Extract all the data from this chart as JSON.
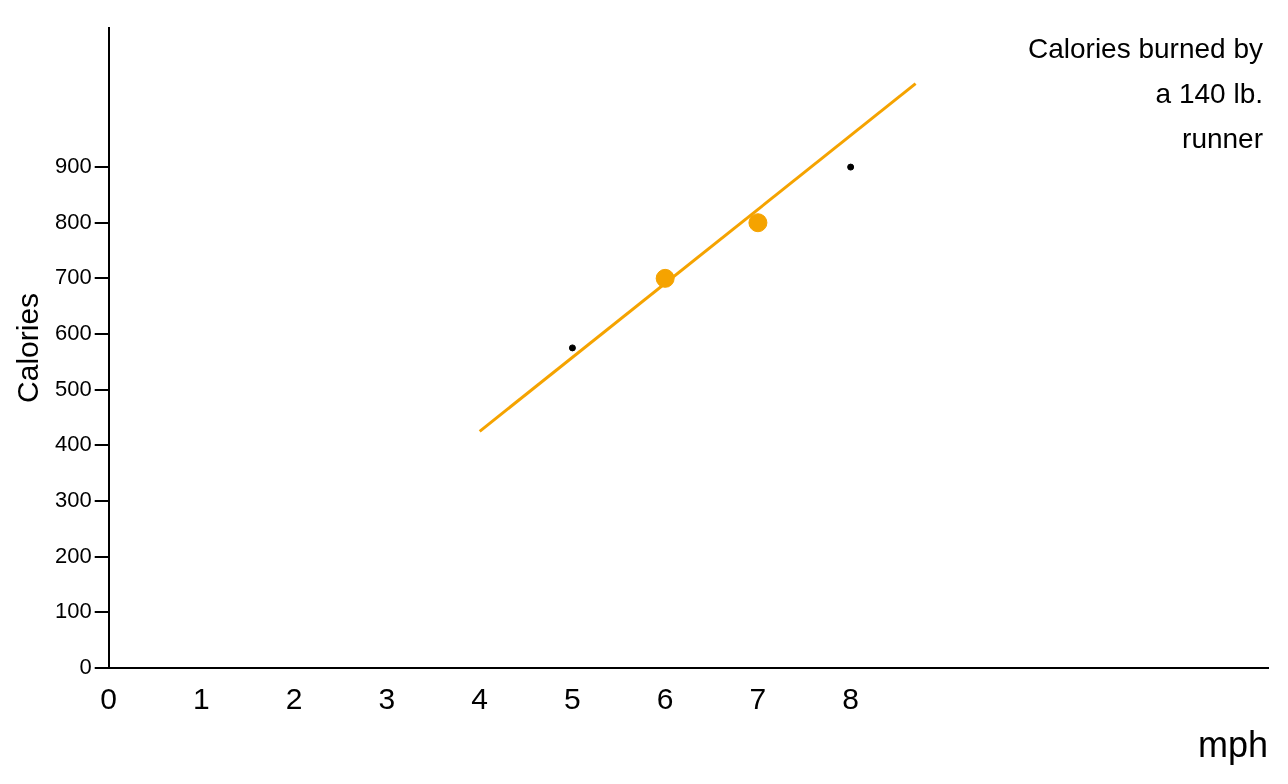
{
  "chart_data": {
    "type": "line",
    "xlabel": "mph",
    "ylabel": "Calories",
    "annotations": [
      "Calories burned by a 140 lb. runner"
    ],
    "xlim": [
      0,
      12.5
    ],
    "xticks": [
      0,
      1,
      2,
      3,
      4,
      5,
      6,
      7,
      8
    ],
    "ylim": [
      0,
      1150
    ],
    "yticks": [
      0,
      100,
      200,
      300,
      400,
      500,
      600,
      700,
      800,
      900
    ],
    "grid": false,
    "legend": false,
    "series": [
      {
        "color": "#f5a300",
        "x": [
          4,
          8.7
        ],
        "values": [
          425,
          1050
        ]
      },
      {
        "type": "scatter",
        "color": "#f5a300",
        "x": [
          6,
          7
        ],
        "values": [
          700,
          800
        ]
      },
      {
        "type": "scatter",
        "color": "#000000",
        "x": [
          5,
          8
        ],
        "values": [
          575,
          900
        ]
      }
    ]
  }
}
